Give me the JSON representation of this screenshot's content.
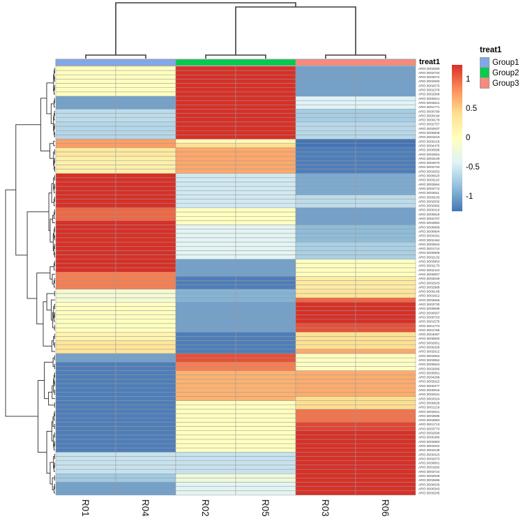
{
  "figure": {
    "annotation_title": "treat1",
    "legend_title": "treat1"
  },
  "chart_data": {
    "type": "heatmap",
    "title": "",
    "columns": [
      "R01",
      "R04",
      "R02",
      "R05",
      "R03",
      "R06"
    ],
    "column_dendrogram": [
      [
        "R01",
        "R04"
      ],
      [
        [
          "R02",
          "R05"
        ],
        [
          "R03",
          "R06"
        ]
      ]
    ],
    "annotation": {
      "title": "treat1",
      "column_groups": [
        {
          "name": "Group1",
          "columns": [
            "R01",
            "R04"
          ],
          "color": "#7FA8EC"
        },
        {
          "name": "Group2",
          "columns": [
            "R02",
            "R05"
          ],
          "color": "#06CB4C"
        },
        {
          "name": "Group3",
          "columns": [
            "R03",
            "R06"
          ],
          "color": "#F8897D"
        }
      ]
    },
    "legend": {
      "title": "treat1",
      "entries": [
        {
          "label": "Group1",
          "color": "#7FA8EC"
        },
        {
          "label": "Group2",
          "color": "#06CB4C"
        },
        {
          "label": "Group3",
          "color": "#F8897D"
        }
      ]
    },
    "colorbar": {
      "ticks": [
        1,
        0.5,
        0,
        -0.5,
        -1
      ],
      "min": -1.25,
      "max": 1.25,
      "palette_low_to_high": [
        "#4575B4",
        "#91BFDB",
        "#E0F3F8",
        "#FFFFBF",
        "#FEE090",
        "#FC8D59",
        "#D73027"
      ]
    },
    "row_value_note": "values are scaled expression per column group [Group1(R01,R04), Group2(R02,R05), Group3(R03,R06)]",
    "rows": [
      [
        "ARO:3002690",
        0,
        1.25,
        -1
      ],
      [
        "ARO:3002702",
        0,
        1.25,
        -1
      ],
      [
        "ARO:3003072",
        0,
        1.25,
        -1
      ],
      [
        "ARO:3002693",
        0,
        1.25,
        -1
      ],
      [
        "ARO:3002675",
        0,
        1.25,
        -1
      ],
      [
        "ARO:3002379",
        0,
        1.25,
        -1
      ],
      [
        "ARO:3002589",
        0,
        1.25,
        -1
      ],
      [
        "ARO:3000521",
        -1,
        1.25,
        -0.42
      ],
      [
        "ARO:3003841",
        -1,
        1.25,
        -0.42
      ],
      [
        "ARO:3001771",
        -1,
        1.25,
        -0.42
      ],
      [
        "ARO:3000790",
        -0.6,
        1.25,
        -0.72
      ],
      [
        "ARO:3000194",
        -0.6,
        1.25,
        -0.72
      ],
      [
        "ARO:3000178",
        -0.6,
        1.25,
        -0.72
      ],
      [
        "ARO:3002757",
        -0.65,
        1.25,
        -0.63
      ],
      [
        "ARO:3002837",
        -0.65,
        1.25,
        -0.63
      ],
      [
        "ARO:3000846",
        -0.65,
        1.25,
        -0.63
      ],
      [
        "ARO:3001610",
        -0.65,
        1.25,
        -0.63
      ],
      [
        "ARO:3000216",
        0.75,
        0.1,
        -1.25
      ],
      [
        "ARO:3004470",
        0.75,
        0.4,
        -1.25
      ],
      [
        "ARO:3000596",
        0.3,
        0.7,
        -1.2
      ],
      [
        "ARO:3002654",
        0.3,
        0.7,
        -1.2
      ],
      [
        "ARO:3003109",
        0.2,
        0.7,
        -1.2
      ],
      [
        "ARO:3002970",
        0.2,
        0.7,
        -1.2
      ],
      [
        "ARO:3002703",
        0.2,
        0.7,
        -1.2
      ],
      [
        "ARO:3002652",
        0.2,
        0.7,
        -1.2
      ],
      [
        "ARO:3000620",
        1.25,
        -0.5,
        -0.95
      ],
      [
        "ARO:3003110",
        1.25,
        -0.5,
        -0.95
      ],
      [
        "ARO:3003564",
        1.25,
        -0.5,
        -0.95
      ],
      [
        "ARO:3003772",
        1.25,
        -0.5,
        -0.95
      ],
      [
        "ARO:3003811",
        1.25,
        -0.5,
        -0.95
      ],
      [
        "ARO:3000193",
        1.25,
        -0.5,
        -0.6
      ],
      [
        "ARO:3002832",
        1.25,
        -0.5,
        -0.6
      ],
      [
        "ARO:3002982",
        1.25,
        -0.5,
        -0.6
      ],
      [
        "ARO:3000410",
        1,
        0,
        -1
      ],
      [
        "ARO:3000819",
        1,
        0,
        -1
      ],
      [
        "ARO:3002707",
        1,
        0,
        -1
      ],
      [
        "ARO:3003984",
        1.25,
        0,
        -1
      ],
      [
        "ARO:3000809",
        1.25,
        -0.38,
        -0.85
      ],
      [
        "ARO:3000804",
        1.25,
        -0.38,
        -0.85
      ],
      [
        "ARO:3004291",
        1.25,
        -0.38,
        -0.85
      ],
      [
        "ARO:3002484",
        1.25,
        -0.38,
        -0.85
      ],
      [
        "ARO:3003942",
        1.25,
        -0.38,
        -0.7
      ],
      [
        "ARO:3001714",
        1.25,
        -0.38,
        -0.7
      ],
      [
        "ARO:3000805",
        1.25,
        -0.38,
        -0.7
      ],
      [
        "ARO:3002132",
        1.25,
        -0.38,
        -0.7
      ],
      [
        "ARO:3003954",
        1.25,
        -1,
        0
      ],
      [
        "ARO:3002170",
        1.25,
        -1,
        0
      ],
      [
        "ARO:3002444",
        1.25,
        -1,
        0
      ],
      [
        "ARO:3000807",
        0.9,
        -1,
        0
      ],
      [
        "ARO:3003049",
        0.9,
        -1.2,
        0.25
      ],
      [
        "ARO:3002543",
        0.9,
        -1.2,
        0.25
      ],
      [
        "ARO:3002968",
        0.9,
        -1.2,
        0.25
      ],
      [
        "ARO:3000149",
        -0.15,
        -0.9,
        0.35
      ],
      [
        "ARO:3001812",
        -0.15,
        -0.9,
        0.35
      ],
      [
        "ARO:3002656",
        -0.15,
        -0.9,
        1
      ],
      [
        "ARO:3003730",
        0,
        -1,
        1.25
      ],
      [
        "ARO:3000699",
        0,
        -1,
        1.25
      ],
      [
        "ARO:3000567",
        0,
        -1,
        1.25
      ],
      [
        "ARO:3000753",
        0,
        -1,
        1.25
      ],
      [
        "ARO:3001575",
        0,
        -1,
        1.25
      ],
      [
        "ARO:3001773",
        0,
        -1,
        1.1
      ],
      [
        "ARO:3001766",
        0,
        -1,
        1.1
      ],
      [
        "ARO:3004087",
        0.15,
        -1.2,
        0.4
      ],
      [
        "ARO:3000600",
        0.15,
        -1.2,
        0.4
      ],
      [
        "ARO:3002651",
        0.35,
        -1.2,
        0.4
      ],
      [
        "ARO:3000326",
        0.35,
        -1.2,
        0.4
      ],
      [
        "ARO:3002912",
        0.35,
        -1.2,
        0.7
      ],
      [
        "ARO:3002863",
        -1,
        1.1,
        -0.02
      ],
      [
        "ARO:3003952",
        -1,
        1.1,
        -0.02
      ],
      [
        "ARO:3000844",
        -1.2,
        0.9,
        -0.02
      ],
      [
        "ARO:3002666",
        -1.2,
        0.9,
        -0.02
      ],
      [
        "ARO:3000561",
        -1.2,
        0.65,
        0.68
      ],
      [
        "ARO:3004289",
        -1.2,
        0.65,
        0.68
      ],
      [
        "ARO:3002922",
        -1.2,
        0.65,
        0.68
      ],
      [
        "ARO:3000377",
        -1.2,
        0.65,
        0.68
      ],
      [
        "ARO:3000816",
        -1.2,
        0.65,
        0.68
      ],
      [
        "ARO:3002631",
        -1.2,
        0.65,
        0.68
      ],
      [
        "ARO:3003324",
        -1.2,
        0.65,
        0.42
      ],
      [
        "ARO:3000829",
        -1.2,
        0,
        0.42
      ],
      [
        "ARO:3001216",
        -1.2,
        0,
        0.42
      ],
      [
        "ARO:3002641",
        -1.2,
        0,
        0.95
      ],
      [
        "ARO:3002595",
        -1.2,
        0,
        0.95
      ],
      [
        "ARO:3003983",
        -1.2,
        0,
        0.95
      ],
      [
        "ARO:3001713",
        -1.2,
        0,
        1.15
      ],
      [
        "ARO:3003774",
        -1.2,
        0,
        1.15
      ],
      [
        "ARO:3002698",
        -1.2,
        0,
        1.25
      ],
      [
        "ARO:3000380",
        -1.2,
        0,
        1.25
      ],
      [
        "ARO:3002883",
        -1.2,
        0,
        1.25
      ],
      [
        "ARO:3003202",
        -1.2,
        0,
        1.25
      ],
      [
        "ARO:3004239",
        -1.2,
        0,
        1.25
      ],
      [
        "ARO:3000423",
        -0.55,
        -0.55,
        1.25
      ],
      [
        "ARO:3002873",
        -0.55,
        -0.55,
        1.25
      ],
      [
        "ARO:3000801",
        -0.55,
        -0.55,
        1.25
      ],
      [
        "ARO:3001692",
        -0.55,
        -0.55,
        1.25
      ],
      [
        "ARO:3003724",
        -0.55,
        -0.55,
        1.25
      ],
      [
        "ARO:3002949",
        -0.75,
        -0.2,
        1.25
      ],
      [
        "ARO:3002685",
        -0.75,
        -0.2,
        1.25
      ],
      [
        "ARO:3000026",
        -1,
        -0.38,
        1.25
      ],
      [
        "ARO:3000343",
        -1,
        -0.38,
        1.25
      ],
      [
        "ARO:3000205",
        -1,
        -0.38,
        1.25
      ]
    ]
  }
}
